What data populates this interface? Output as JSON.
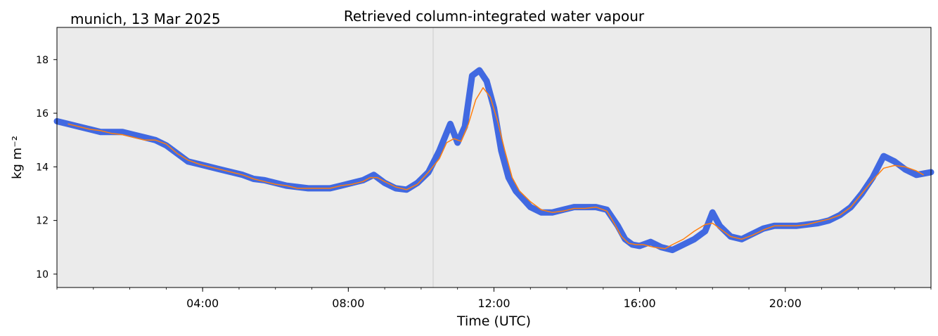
{
  "chart_data": {
    "type": "line",
    "title": "Retrieved column-integrated water vapour",
    "subtitle": "munich, 13 Mar 2025",
    "xlabel": "Time (UTC)",
    "ylabel": "kg m⁻²",
    "xlim_hours": [
      0,
      24
    ],
    "ylim": [
      9.5,
      19.2
    ],
    "x_ticks": [
      {
        "hour": 4,
        "label": "04:00"
      },
      {
        "hour": 8,
        "label": "08:00"
      },
      {
        "hour": 12,
        "label": "12:00"
      },
      {
        "hour": 16,
        "label": "16:00"
      },
      {
        "hour": 20,
        "label": "20:00"
      }
    ],
    "y_ticks": [
      10,
      12,
      14,
      16,
      18
    ],
    "grid": false,
    "background": "#ebebeb",
    "colors": {
      "raw": "#4169e1",
      "smoothed": "#ff7f0e"
    },
    "vertical_marker_hour": 10.33,
    "series": [
      {
        "kind": "raw-scatter",
        "x": [
          0.0,
          0.3,
          0.6,
          0.9,
          1.2,
          1.5,
          1.8,
          2.1,
          2.4,
          2.7,
          3.0,
          3.3,
          3.6,
          3.9,
          4.2,
          4.5,
          4.8,
          5.1,
          5.4,
          5.7,
          6.0,
          6.3,
          6.6,
          6.9,
          7.2,
          7.5,
          7.8,
          8.1,
          8.4,
          8.7,
          9.0,
          9.3,
          9.6,
          9.9,
          10.2,
          10.5,
          10.8,
          11.0,
          11.2,
          11.4,
          11.6,
          11.8,
          12.0,
          12.2,
          12.4,
          12.6,
          12.8,
          13.0,
          13.3,
          13.6,
          13.9,
          14.2,
          14.5,
          14.8,
          15.1,
          15.4,
          15.6,
          15.8,
          16.0,
          16.3,
          16.6,
          16.9,
          17.2,
          17.5,
          17.8,
          18.0,
          18.2,
          18.5,
          18.8,
          19.1,
          19.4,
          19.7,
          20.0,
          20.3,
          20.6,
          20.9,
          21.2,
          21.5,
          21.8,
          22.1,
          22.4,
          22.7,
          23.0,
          23.3,
          23.6,
          24.0
        ],
        "y": [
          15.7,
          15.6,
          15.5,
          15.4,
          15.3,
          15.3,
          15.3,
          15.2,
          15.1,
          15.0,
          14.8,
          14.5,
          14.2,
          14.1,
          14.0,
          13.9,
          13.8,
          13.7,
          13.55,
          13.5,
          13.4,
          13.3,
          13.25,
          13.2,
          13.2,
          13.2,
          13.3,
          13.4,
          13.5,
          13.7,
          13.4,
          13.2,
          13.15,
          13.4,
          13.8,
          14.6,
          15.6,
          14.9,
          15.5,
          17.4,
          17.6,
          17.2,
          16.2,
          14.6,
          13.6,
          13.1,
          12.8,
          12.5,
          12.3,
          12.3,
          12.4,
          12.5,
          12.5,
          12.5,
          12.4,
          11.8,
          11.3,
          11.1,
          11.05,
          11.2,
          11.0,
          10.9,
          11.1,
          11.3,
          11.6,
          12.3,
          11.8,
          11.4,
          11.3,
          11.5,
          11.7,
          11.8,
          11.8,
          11.8,
          11.85,
          11.9,
          12.0,
          12.2,
          12.5,
          13.0,
          13.6,
          14.4,
          14.2,
          13.9,
          13.7,
          13.8
        ]
      },
      {
        "kind": "smoothed-line",
        "x": [
          0.3,
          0.6,
          0.9,
          1.2,
          1.5,
          1.8,
          2.1,
          2.4,
          2.7,
          3.0,
          3.3,
          3.6,
          3.9,
          4.2,
          4.5,
          4.8,
          5.1,
          5.4,
          5.7,
          6.0,
          6.3,
          6.6,
          6.9,
          7.2,
          7.5,
          7.8,
          8.1,
          8.4,
          8.6,
          8.8,
          9.0,
          9.3,
          9.6,
          9.9,
          10.2,
          10.5,
          10.7,
          10.9,
          11.1,
          11.3,
          11.5,
          11.7,
          11.9,
          12.1,
          12.3,
          12.5,
          12.7,
          13.0,
          13.3,
          13.6,
          13.9,
          14.2,
          14.5,
          14.8,
          15.1,
          15.3,
          15.5,
          15.7,
          15.9,
          16.1,
          16.4,
          16.7,
          16.9,
          17.2,
          17.5,
          17.8,
          18.0,
          18.2,
          18.5,
          18.8,
          19.1,
          19.4,
          19.7,
          20.0,
          20.3,
          20.6,
          20.9,
          21.2,
          21.5,
          21.8,
          22.1,
          22.4,
          22.7,
          23.0,
          23.3,
          23.6,
          23.8
        ],
        "y": [
          15.6,
          15.5,
          15.4,
          15.35,
          15.25,
          15.2,
          15.1,
          15.0,
          15.0,
          14.85,
          14.5,
          14.25,
          14.1,
          14.0,
          13.9,
          13.8,
          13.7,
          13.55,
          13.45,
          13.35,
          13.3,
          13.2,
          13.2,
          13.2,
          13.2,
          13.3,
          13.35,
          13.45,
          13.6,
          13.6,
          13.45,
          13.25,
          13.15,
          13.35,
          13.8,
          14.3,
          14.9,
          15.05,
          14.95,
          15.6,
          16.5,
          16.95,
          16.6,
          15.7,
          14.6,
          13.6,
          13.1,
          12.7,
          12.4,
          12.3,
          12.35,
          12.45,
          12.45,
          12.5,
          12.35,
          11.9,
          11.4,
          11.15,
          11.1,
          11.1,
          11.0,
          10.95,
          11.1,
          11.3,
          11.6,
          11.85,
          11.9,
          11.7,
          11.4,
          11.3,
          11.45,
          11.65,
          11.8,
          11.8,
          11.8,
          11.85,
          11.95,
          12.05,
          12.2,
          12.5,
          13.0,
          13.5,
          13.95,
          14.05,
          14.0,
          13.85,
          13.7
        ]
      }
    ]
  }
}
